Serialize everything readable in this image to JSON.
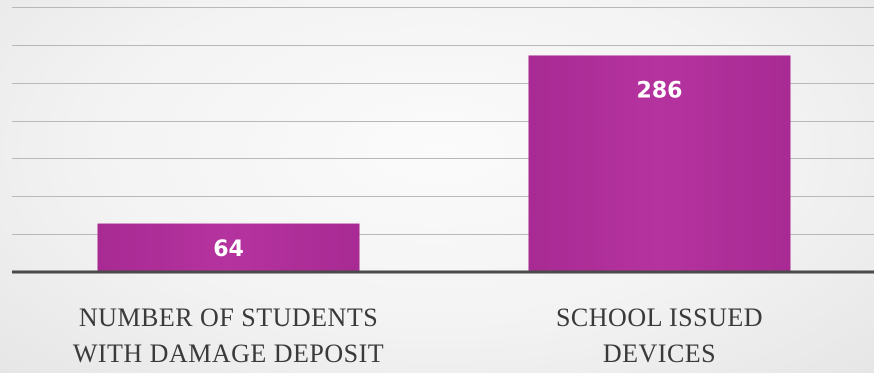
{
  "chart_data": {
    "type": "bar",
    "categories": [
      [
        "NUMBER OF STUDENTS",
        "WITH DAMAGE DEPOSIT"
      ],
      [
        "SCHOOL ISSUED",
        "DEVICES"
      ]
    ],
    "values": [
      64,
      286
    ],
    "data_labels": [
      "64",
      "286"
    ],
    "title": "",
    "xlabel": "",
    "ylabel": "",
    "ylim": [
      0,
      350
    ],
    "grid": true,
    "legend": "none",
    "bar_color": "#b02e9a",
    "data_label_color": "#ffffff"
  }
}
